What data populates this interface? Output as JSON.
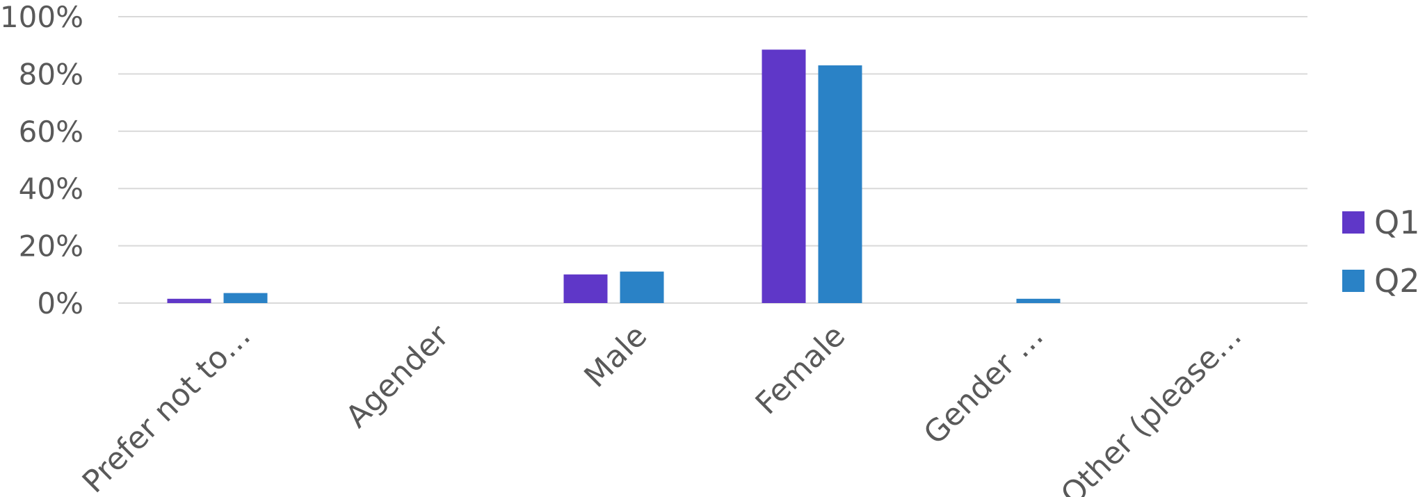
{
  "chart_data": {
    "type": "bar",
    "categories": [
      "Prefer not to…",
      "Agender",
      "Male",
      "Female",
      "Gender …",
      "Other (please…"
    ],
    "series": [
      {
        "name": "Q1",
        "color": "#5f37c8",
        "values": [
          1.5,
          0,
          10,
          88.5,
          0,
          0
        ]
      },
      {
        "name": "Q2",
        "color": "#2a82c6",
        "values": [
          3.5,
          0,
          11,
          83,
          1.5,
          0
        ]
      }
    ],
    "y_ticks": [
      "0%",
      "20%",
      "40%",
      "60%",
      "80%",
      "100%"
    ],
    "ylim": [
      0,
      100
    ],
    "grid": true,
    "legend_position": "right"
  }
}
